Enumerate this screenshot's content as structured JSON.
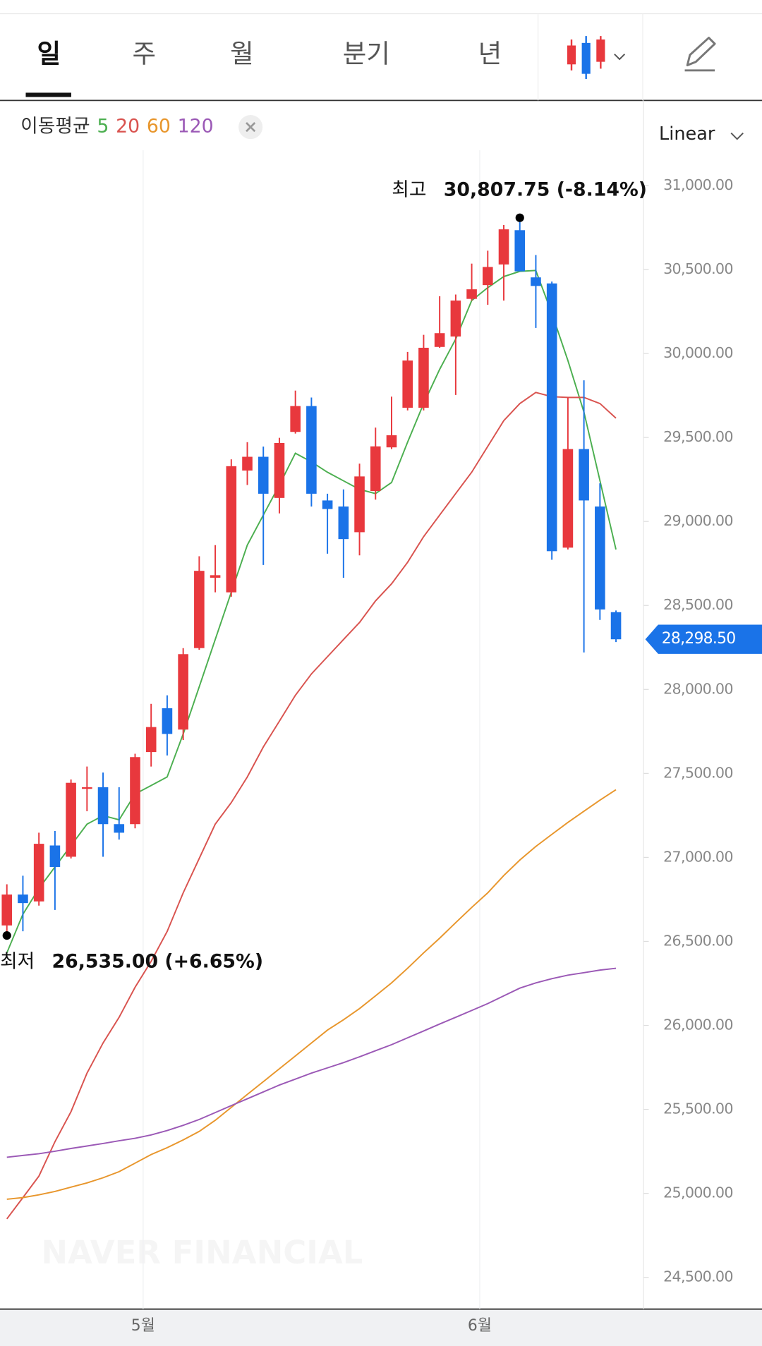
{
  "tabs": [
    "일",
    "주",
    "월",
    "분기",
    "년"
  ],
  "chart_data": {
    "type": "candlestick",
    "scale": "Linear",
    "watermark": "NAVER FINANCIAL",
    "categories": [
      null,
      null,
      null,
      null,
      null,
      null,
      null,
      null,
      "5월",
      null,
      null,
      null,
      null,
      null,
      null,
      null,
      null,
      null,
      null,
      null,
      null,
      null,
      null,
      null,
      null,
      null,
      null,
      null,
      null,
      "6월",
      null,
      null,
      null,
      null,
      null,
      null,
      null,
      null,
      null
    ],
    "up_color": "#e8383d",
    "down_color": "#1a73e8",
    "open": [
      26595,
      26779,
      26738,
      27071,
      27004,
      27408,
      27418,
      27198,
      27198,
      27627,
      27888,
      27761,
      28246,
      28665,
      28578,
      29303,
      29385,
      29140,
      29533,
      29687,
      29125,
      29089,
      28936,
      29181,
      29441,
      29677,
      29677,
      30039,
      30101,
      30325,
      30407,
      30530,
      30734,
      30453,
      30417,
      28844,
      29431,
      29089,
      28460
    ],
    "high": [
      26840,
      26891,
      27147,
      27157,
      27464,
      27541,
      27505,
      27418,
      27617,
      27914,
      27965,
      28246,
      28793,
      28859,
      29370,
      29472,
      29446,
      29498,
      29779,
      29738,
      29165,
      29191,
      29344,
      29559,
      29743,
      30009,
      30111,
      30341,
      30351,
      30535,
      30612,
      30765,
      30807.75,
      30586,
      30428,
      29738,
      29840,
      29227,
      28470
    ],
    "low": [
      26535,
      26560,
      26713,
      26687,
      26994,
      27275,
      27004,
      27106,
      27173,
      27541,
      27607,
      27699,
      28236,
      28578,
      28552,
      29217,
      28741,
      29048,
      29523,
      29089,
      28808,
      28665,
      28798,
      29130,
      29431,
      29661,
      29661,
      30034,
      29753,
      30315,
      30290,
      30315,
      30489,
      30152,
      28772,
      28833,
      28220,
      28414,
      28282
    ],
    "close": [
      26779,
      26728,
      27081,
      26943,
      27444,
      27418,
      27198,
      27147,
      27597,
      27776,
      27735,
      28210,
      28706,
      28680,
      29329,
      29385,
      29165,
      29467,
      29687,
      29165,
      29074,
      28895,
      29268,
      29447,
      29513,
      29958,
      30034,
      30121,
      30315,
      30382,
      30515,
      30739,
      30489,
      30402,
      28823,
      29431,
      29125,
      28476,
      28298.5
    ],
    "moving_averages": {
      "label": "이동평균",
      "series": [
        {
          "name": "5",
          "color": "#4caf50",
          "values": [
            26432,
            26662,
            26815,
            26943,
            27070,
            27198,
            27249,
            27224,
            27377,
            27428,
            27479,
            27735,
            28016,
            28297,
            28578,
            28859,
            29038,
            29217,
            29406,
            29355,
            29293,
            29242,
            29191,
            29166,
            29232,
            29472,
            29702,
            29906,
            30085,
            30315,
            30392,
            30458,
            30489,
            30494,
            30239,
            29958,
            29651,
            29242,
            28833
          ]
        },
        {
          "name": "20",
          "color": "#d9534f",
          "values": [
            24848,
            24975,
            25103,
            25307,
            25486,
            25716,
            25895,
            26048,
            26227,
            26381,
            26559,
            26789,
            26994,
            27198,
            27326,
            27479,
            27658,
            27811,
            27965,
            28092,
            28195,
            28297,
            28399,
            28527,
            28629,
            28757,
            28910,
            29038,
            29166,
            29293,
            29447,
            29600,
            29702,
            29768,
            29743,
            29738,
            29738,
            29702,
            29615
          ]
        },
        {
          "name": "60",
          "color": "#e8962c",
          "values": [
            24965,
            24975,
            24991,
            25011,
            25037,
            25062,
            25093,
            25129,
            25180,
            25231,
            25272,
            25318,
            25369,
            25435,
            25512,
            25589,
            25665,
            25742,
            25818,
            25895,
            25972,
            26033,
            26100,
            26176,
            26253,
            26340,
            26432,
            26519,
            26611,
            26702,
            26789,
            26892,
            26984,
            27065,
            27137,
            27208,
            27275,
            27341,
            27403
          ]
        },
        {
          "name": "120",
          "color": "#9b59b6",
          "values": [
            25215,
            25226,
            25236,
            25251,
            25267,
            25282,
            25297,
            25313,
            25328,
            25348,
            25374,
            25405,
            25440,
            25481,
            25522,
            25563,
            25604,
            25645,
            25680,
            25716,
            25747,
            25778,
            25813,
            25849,
            25885,
            25926,
            25967,
            26008,
            26048,
            26089,
            26130,
            26176,
            26222,
            26253,
            26278,
            26299,
            26314,
            26329,
            26340
          ]
        }
      ]
    },
    "high_mark": {
      "label": "최고",
      "value": 30807.75,
      "value_label": "30,807.75 (-8.14%)"
    },
    "low_mark": {
      "label": "최저",
      "value": 26535,
      "value_label": "26,535.00 (+6.65%)"
    },
    "current_price": {
      "value": 28298.5,
      "label": "28,298.50"
    },
    "ylim": [
      24311,
      31210
    ],
    "yticks": [
      {
        "value": 24500,
        "label": "24,500.00"
      },
      {
        "value": 25000,
        "label": "25,000.00"
      },
      {
        "value": 25500,
        "label": "25,500.00"
      },
      {
        "value": 26000,
        "label": "26,000.00"
      },
      {
        "value": 26500,
        "label": "26,500.00"
      },
      {
        "value": 27000,
        "label": "27,000.00"
      },
      {
        "value": 27500,
        "label": "27,500.00"
      },
      {
        "value": 28000,
        "label": "28,000.00"
      },
      {
        "value": 28500,
        "label": "28,500.00"
      },
      {
        "value": 29000,
        "label": "29,000.00"
      },
      {
        "value": 29500,
        "label": "29,500.00"
      },
      {
        "value": 30000,
        "label": "30,000.00"
      },
      {
        "value": 30500,
        "label": "30,500.00"
      },
      {
        "value": 31000,
        "label": "31,000.00"
      }
    ]
  }
}
